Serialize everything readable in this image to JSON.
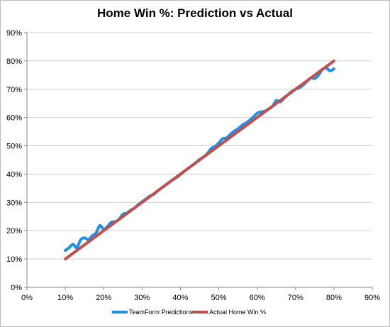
{
  "chart_data": {
    "type": "line",
    "title": "Home Win %: Prediction vs Actual",
    "xlabel": "",
    "ylabel": "",
    "xlim": [
      0,
      90
    ],
    "ylim": [
      0,
      90
    ],
    "x_ticks": [
      "0%",
      "10%",
      "20%",
      "30%",
      "40%",
      "50%",
      "60%",
      "70%",
      "80%",
      "90%"
    ],
    "y_ticks": [
      "0%",
      "10%",
      "20%",
      "30%",
      "40%",
      "50%",
      "60%",
      "70%",
      "80%",
      "90%"
    ],
    "grid": "horizontal",
    "legend_position": "bottom",
    "series": [
      {
        "name": "TeamForm Predictions",
        "color": "#1f8fe8",
        "x": [
          10,
          11,
          12,
          13,
          14,
          15,
          16,
          17,
          18,
          19,
          20,
          21,
          22,
          23,
          24,
          25,
          26,
          27,
          28,
          29,
          30,
          31,
          32,
          33,
          34,
          35,
          36,
          37,
          38,
          39,
          40,
          41,
          42,
          43,
          44,
          45,
          46,
          47,
          48,
          49,
          50,
          51,
          52,
          53,
          54,
          55,
          56,
          57,
          58,
          59,
          60,
          61,
          62,
          63,
          64,
          65,
          66,
          67,
          68,
          69,
          70,
          71,
          72,
          73,
          74,
          75,
          76,
          77,
          78,
          79,
          80
        ],
        "values": [
          13.0,
          14.0,
          15.2,
          14.0,
          16.8,
          17.5,
          16.8,
          18.2,
          19.2,
          21.8,
          20.5,
          21.5,
          23.0,
          23.2,
          24.0,
          25.8,
          26.2,
          27.2,
          28.0,
          29.2,
          30.2,
          31.2,
          32.2,
          32.8,
          34.0,
          35.0,
          36.0,
          37.0,
          38.0,
          38.8,
          39.8,
          41.0,
          42.0,
          43.0,
          44.0,
          45.2,
          46.0,
          47.2,
          49.0,
          49.8,
          51.0,
          52.5,
          52.8,
          54.0,
          55.2,
          56.0,
          57.2,
          58.0,
          59.0,
          60.2,
          61.5,
          62.0,
          62.2,
          63.0,
          64.0,
          66.0,
          65.5,
          66.8,
          68.0,
          69.2,
          70.0,
          70.5,
          71.5,
          72.8,
          74.0,
          73.8,
          75.0,
          77.0,
          77.5,
          76.5,
          77.2
        ]
      },
      {
        "name": "Actual Home Win %",
        "color": "#c0504d",
        "x": [
          10,
          80
        ],
        "values": [
          10,
          80
        ]
      }
    ]
  }
}
